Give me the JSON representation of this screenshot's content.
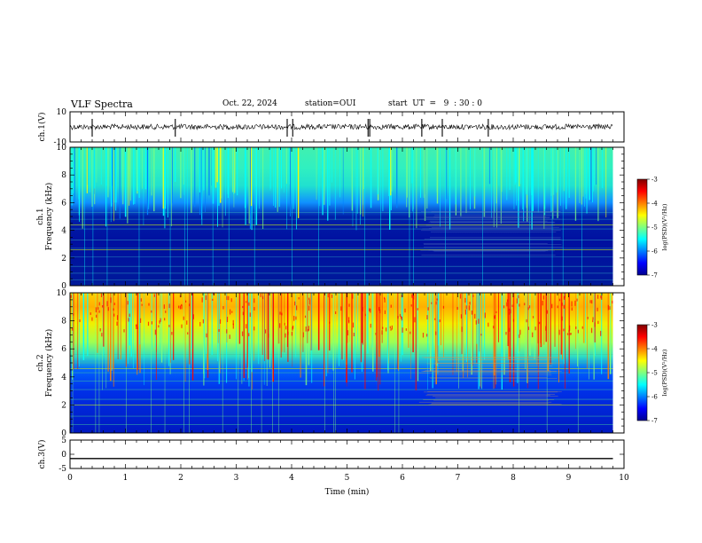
{
  "header": {
    "title": "VLF Spectra",
    "date": "Oct. 22, 2024",
    "station": "station=OUI",
    "start_ut": "start  UT  =   9  : 30 : 0"
  },
  "chart_data": [
    {
      "type": "line",
      "id": "waveform-ch1",
      "ylabel": "ch.1(V)",
      "ylim": [
        -10,
        10
      ],
      "yticks": [
        "10",
        "-10"
      ],
      "xlim": [
        0,
        10
      ],
      "x": [
        0,
        9.8
      ],
      "series": [
        {
          "values": [
            0,
            0
          ]
        }
      ],
      "spikes_min": [
        0.4,
        1.9,
        3.92,
        4.02,
        5.38,
        5.41,
        6.35,
        6.72,
        7.55
      ],
      "color": "#000000"
    },
    {
      "type": "heatmap",
      "id": "spectrogram-ch1",
      "ylabel_top": "ch.1",
      "ylabel": "Frequency  (kHz)",
      "ylim": [
        0,
        10
      ],
      "yticks": [
        "0",
        "2",
        "4",
        "6",
        "8",
        "10"
      ],
      "xlim": [
        0,
        9.8
      ],
      "colorbar": {
        "label": "log(PSD)(V²/Hz)",
        "range": [
          -7,
          -3
        ],
        "ticks": [
          "-3",
          "-4",
          "-5",
          "-6",
          "-7"
        ]
      },
      "upper_band_level": "mid"
    },
    {
      "type": "heatmap",
      "id": "spectrogram-ch2",
      "ylabel_top": "ch.2",
      "ylabel": "Frequency  (kHz)",
      "ylim": [
        0,
        10
      ],
      "yticks": [
        "0",
        "2",
        "4",
        "6",
        "8",
        "10"
      ],
      "xlim": [
        0,
        9.8
      ],
      "colorbar": {
        "label": "log(PSD)(V²/Hz)",
        "range": [
          -7,
          -3
        ],
        "ticks": [
          "-3",
          "-4",
          "-5",
          "-6",
          "-7"
        ]
      },
      "upper_band_level": "high"
    },
    {
      "type": "line",
      "id": "waveform-ch3",
      "ylabel": "ch.3(V)",
      "ylim": [
        -5,
        5
      ],
      "yticks": [
        "5",
        "0",
        "-5"
      ],
      "xlim": [
        0,
        10
      ],
      "x": [
        0,
        9.8
      ],
      "series": [
        {
          "values": [
            -1.5,
            -1.5
          ]
        }
      ],
      "color": "#000000"
    }
  ],
  "xaxis": {
    "label": "Time  (min)",
    "range": [
      0,
      10
    ],
    "ticks": [
      "0",
      "1",
      "2",
      "3",
      "4",
      "5",
      "6",
      "7",
      "8",
      "9",
      "10"
    ]
  },
  "colors": {
    "jet": [
      "#00008f",
      "#0000ff",
      "#007fff",
      "#00ffff",
      "#7fff7f",
      "#ffff00",
      "#ff7f00",
      "#ff0000",
      "#7f0000"
    ]
  }
}
